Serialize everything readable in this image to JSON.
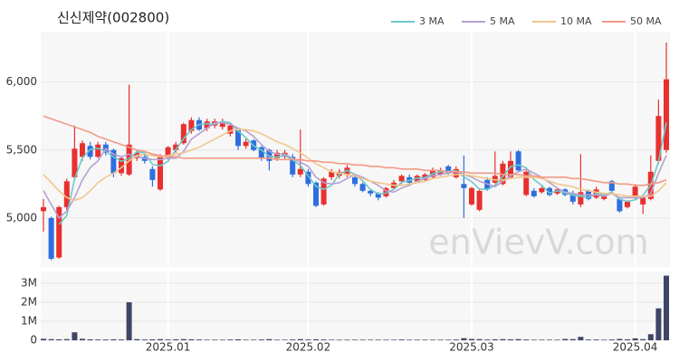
{
  "chart_data": [
    {
      "type": "candlestick",
      "title": "신신제약(002800)",
      "watermark": "enVievV.com",
      "categories": [
        null,
        null,
        null,
        null,
        null,
        null,
        null,
        null,
        null,
        null,
        null,
        null,
        null,
        null,
        null,
        null,
        "2025.01",
        null,
        null,
        null,
        null,
        null,
        null,
        null,
        null,
        null,
        null,
        null,
        null,
        null,
        null,
        null,
        null,
        null,
        "2025.02",
        null,
        null,
        null,
        null,
        null,
        null,
        null,
        null,
        null,
        null,
        null,
        null,
        null,
        null,
        null,
        null,
        null,
        null,
        null,
        null,
        "2025.03",
        null,
        null,
        null,
        null,
        null,
        null,
        null,
        null,
        null,
        null,
        null,
        null,
        null,
        null,
        null,
        null,
        null,
        null,
        null,
        null,
        "2025.04",
        null,
        null,
        null,
        null
      ],
      "open": [
        5050,
        5000,
        4710,
        5080,
        5300,
        5450,
        5530,
        5450,
        5540,
        5500,
        5330,
        5320,
        5440,
        5450,
        5360,
        5210,
        5450,
        5500,
        5550,
        5640,
        5720,
        5660,
        5680,
        5670,
        5620,
        5650,
        5530,
        5570,
        5520,
        5500,
        5440,
        5450,
        5450,
        5320,
        5340,
        5260,
        5100,
        5300,
        5310,
        5320,
        5300,
        5250,
        5200,
        5180,
        5160,
        5220,
        5270,
        5300,
        5270,
        5280,
        5300,
        5320,
        5380,
        5300,
        5250,
        5100,
        5060,
        5280,
        5260,
        5250,
        5300,
        5490,
        5170,
        5200,
        5190,
        5220,
        5180,
        5210,
        5180,
        5100,
        5200,
        5150,
        5140,
        5270,
        5140,
        5080,
        5150,
        5100,
        5140,
        5420,
        5500
      ],
      "high": [
        5140,
        5010,
        5090,
        5290,
        5680,
        5570,
        5560,
        5560,
        5560,
        5510,
        5450,
        5980,
        5500,
        5470,
        5380,
        5470,
        5530,
        5560,
        5700,
        5740,
        5740,
        5730,
        5730,
        5730,
        5700,
        5660,
        5580,
        5580,
        5530,
        5510,
        5500,
        5500,
        5470,
        5650,
        5360,
        5270,
        5300,
        5360,
        5360,
        5390,
        5310,
        5260,
        5210,
        5190,
        5230,
        5280,
        5320,
        5320,
        5320,
        5330,
        5370,
        5370,
        5390,
        5380,
        5460,
        5230,
        5210,
        5300,
        5490,
        5420,
        5490,
        5500,
        5350,
        5220,
        5230,
        5230,
        5220,
        5220,
        5200,
        5470,
        5210,
        5230,
        5180,
        5280,
        5150,
        5130,
        5250,
        5160,
        5460,
        5870,
        6290
      ],
      "low": [
        4900,
        4690,
        4700,
        5050,
        5290,
        5420,
        5430,
        5440,
        5460,
        5300,
        5310,
        5310,
        5420,
        5400,
        5230,
        5200,
        5430,
        5480,
        5540,
        5620,
        5640,
        5640,
        5660,
        5650,
        5600,
        5500,
        5510,
        5490,
        5420,
        5350,
        5420,
        5430,
        5300,
        5300,
        5230,
        5080,
        5090,
        5280,
        5290,
        5300,
        5230,
        5190,
        5160,
        5130,
        5150,
        5210,
        5250,
        5250,
        5260,
        5270,
        5290,
        5310,
        5320,
        5290,
        5000,
        5090,
        5050,
        5200,
        5250,
        5240,
        5290,
        5340,
        5160,
        5150,
        5180,
        5160,
        5170,
        5160,
        5100,
        5080,
        5130,
        5140,
        5130,
        5190,
        5040,
        5070,
        5140,
        5030,
        5130,
        5400,
        5480
      ],
      "close": [
        5080,
        4700,
        5080,
        5270,
        5510,
        5550,
        5450,
        5540,
        5480,
        5330,
        5440,
        5540,
        5480,
        5420,
        5280,
        5450,
        5520,
        5540,
        5690,
        5720,
        5650,
        5710,
        5710,
        5710,
        5680,
        5530,
        5560,
        5500,
        5440,
        5420,
        5480,
        5480,
        5320,
        5360,
        5250,
        5090,
        5290,
        5340,
        5340,
        5370,
        5250,
        5200,
        5180,
        5150,
        5220,
        5260,
        5310,
        5260,
        5310,
        5320,
        5350,
        5350,
        5330,
        5360,
        5220,
        5220,
        5200,
        5210,
        5310,
        5400,
        5420,
        5350,
        5340,
        5160,
        5220,
        5170,
        5210,
        5170,
        5120,
        5190,
        5140,
        5210,
        5160,
        5200,
        5050,
        5120,
        5230,
        5150,
        5340,
        5750,
        6020
      ],
      "up_color": "#e8302f",
      "down_color": "#2f6ee0",
      "series": [
        {
          "name": "3 MA",
          "color": "#6cc9c9",
          "values": [
            null,
            null,
            4953,
            5017,
            5287,
            5443,
            5503,
            5513,
            5490,
            5450,
            5417,
            5437,
            5487,
            5480,
            5393,
            5383,
            5417,
            5503,
            5583,
            5650,
            5687,
            5693,
            5690,
            5710,
            5700,
            5640,
            5590,
            5530,
            5500,
            5453,
            5447,
            5460,
            5427,
            5387,
            5310,
            5233,
            5210,
            5240,
            5323,
            5350,
            5320,
            5273,
            5210,
            5177,
            5183,
            5210,
            5263,
            5277,
            5293,
            5297,
            5327,
            5340,
            5343,
            5347,
            5303,
            5267,
            5213,
            5210,
            5240,
            5307,
            5377,
            5390,
            5370,
            5283,
            5240,
            5183,
            5200,
            5183,
            5167,
            5160,
            5150,
            5180,
            5170,
            5190,
            5137,
            5123,
            5133,
            5167,
            5240,
            5413,
            5703
          ]
        },
        {
          "name": "5 MA",
          "color": "#b7a1d3",
          "values": [
            5200,
            5100,
            5000,
            5050,
            5150,
            5280,
            5370,
            5420,
            5510,
            5470,
            5450,
            5470,
            5450,
            5440,
            5430,
            5430,
            5440,
            5440,
            5490,
            5580,
            5620,
            5660,
            5700,
            5700,
            5690,
            5660,
            5640,
            5600,
            5540,
            5490,
            5470,
            5470,
            5440,
            5410,
            5380,
            5300,
            5260,
            5250,
            5260,
            5290,
            5320,
            5300,
            5270,
            5240,
            5200,
            5190,
            5220,
            5240,
            5270,
            5290,
            5310,
            5320,
            5330,
            5340,
            5320,
            5300,
            5270,
            5250,
            5230,
            5270,
            5310,
            5340,
            5360,
            5330,
            5300,
            5260,
            5220,
            5190,
            5180,
            5170,
            5170,
            5170,
            5160,
            5180,
            5150,
            5150,
            5150,
            5150,
            5180,
            5330,
            5460
          ]
        },
        {
          "name": "10 MA",
          "color": "#f2c68c",
          "values": [
            5320,
            5260,
            5200,
            5150,
            5130,
            5150,
            5200,
            5260,
            5300,
            5330,
            5370,
            5420,
            5460,
            5470,
            5460,
            5450,
            5460,
            5470,
            5480,
            5500,
            5520,
            5550,
            5580,
            5610,
            5640,
            5650,
            5650,
            5640,
            5620,
            5590,
            5560,
            5540,
            5510,
            5480,
            5440,
            5400,
            5370,
            5340,
            5330,
            5320,
            5310,
            5290,
            5270,
            5260,
            5250,
            5240,
            5240,
            5250,
            5260,
            5270,
            5290,
            5300,
            5310,
            5320,
            5320,
            5310,
            5300,
            5290,
            5280,
            5280,
            5290,
            5300,
            5300,
            5300,
            5290,
            5270,
            5250,
            5240,
            5230,
            5210,
            5200,
            5190,
            5180,
            5180,
            5170,
            5160,
            5160,
            5160,
            5160,
            5200,
            5260
          ]
        },
        {
          "name": "50 MA",
          "color": "#f29a86",
          "values": [
            5750,
            5730,
            5710,
            5690,
            5670,
            5650,
            5630,
            5600,
            5580,
            5560,
            5540,
            5520,
            5500,
            5490,
            5470,
            5460,
            5450,
            5450,
            5440,
            5440,
            5440,
            5440,
            5440,
            5440,
            5440,
            5440,
            5440,
            5440,
            5440,
            5440,
            5430,
            5430,
            5430,
            5430,
            5420,
            5420,
            5410,
            5410,
            5400,
            5400,
            5390,
            5390,
            5380,
            5380,
            5370,
            5370,
            5360,
            5360,
            5360,
            5350,
            5350,
            5350,
            5340,
            5340,
            5340,
            5330,
            5330,
            5330,
            5330,
            5320,
            5320,
            5320,
            5310,
            5310,
            5300,
            5300,
            5300,
            5300,
            5290,
            5290,
            5280,
            5270,
            5260,
            5260,
            5250,
            5250,
            5240,
            5240,
            5250,
            5260,
            5280
          ]
        }
      ],
      "ylim": [
        4640,
        6370
      ],
      "yticks": [
        {
          "value": 5000,
          "label": "5,000"
        },
        {
          "value": 5500,
          "label": "5,500"
        },
        {
          "value": 6000,
          "label": "6,000"
        }
      ],
      "grid": true
    },
    {
      "type": "bar",
      "color": "#3f4566",
      "values": [
        80000,
        60000,
        50000,
        60000,
        420000,
        80000,
        50000,
        40000,
        40000,
        50000,
        40000,
        2000000,
        60000,
        40000,
        50000,
        60000,
        40000,
        50000,
        60000,
        50000,
        40000,
        30000,
        30000,
        30000,
        40000,
        50000,
        30000,
        30000,
        40000,
        60000,
        30000,
        30000,
        40000,
        60000,
        40000,
        50000,
        40000,
        30000,
        30000,
        30000,
        30000,
        30000,
        30000,
        30000,
        30000,
        30000,
        40000,
        30000,
        30000,
        30000,
        30000,
        30000,
        30000,
        40000,
        110000,
        70000,
        60000,
        40000,
        50000,
        60000,
        50000,
        60000,
        40000,
        30000,
        30000,
        30000,
        30000,
        70000,
        60000,
        180000,
        40000,
        40000,
        30000,
        40000,
        70000,
        50000,
        100000,
        60000,
        320000,
        1680000,
        3400000
      ],
      "ylim": [
        0,
        3620000
      ],
      "yticks": [
        0,
        {
          "value": 1000000,
          "label": "1M"
        },
        {
          "value": 2000000,
          "label": "2M"
        },
        {
          "value": 3000000,
          "label": "3M"
        }
      ],
      "grid": true
    }
  ]
}
